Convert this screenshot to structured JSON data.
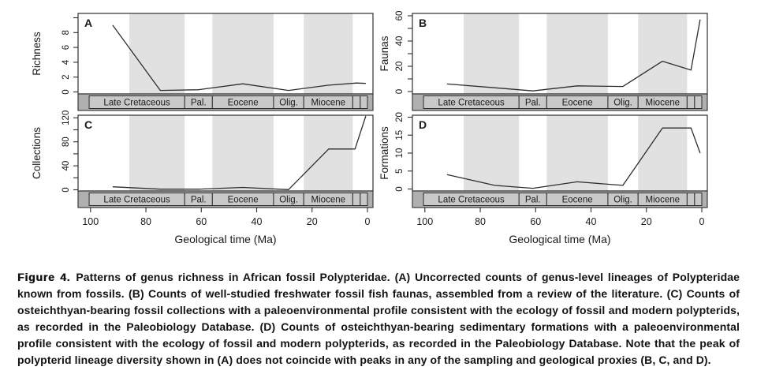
{
  "figure": {
    "caption": {
      "label": "Figure 4.",
      "text": "Patterns of genus richness in African fossil Polypteridae. (A) Uncorrected counts of genus-level lineages of Polypteridae known from fossils. (B) Counts of well-studied freshwater fossil fish faunas, assembled from a review of the literature. (C) Counts of osteichthyan-bearing fossil collections with a paleoenvironmental profile consistent with the ecology of fossil and modern polypterids, as recorded in the Paleobiology Database. (D) Counts of osteichthyan-bearing sedimentary formations with a paleoenvironmental profile consistent with the ecology of fossil and modern polypterids, as recorded in the Paleobiology Database. Note that the peak of polypterid lineage diversity shown in (A) does not coincide with peaks in any of the sampling and geological proxies (B, C, and D)."
    }
  },
  "colors": {
    "page_bg": "#ffffff",
    "plot_bg": "#ffffff",
    "shading_band": "#e1e1e1",
    "epoch_strip": "#b0b0b0",
    "epoch_box": "#c9c9c9",
    "frame": "#2e2e2e",
    "series_line": "#2e2e2e",
    "text": "#1a1a1a"
  },
  "chart_data": {
    "type": "line",
    "title": "",
    "xlabel": "Geological time (Ma)",
    "x_ticks": [
      100,
      80,
      60,
      40,
      20,
      0
    ],
    "x_range_ma": [
      104.5,
      -2
    ],
    "x_axis_reversed": true,
    "grid": false,
    "legend": "none",
    "background_shading_ma": [
      [
        86,
        66
      ],
      [
        56,
        33.9
      ],
      [
        23,
        5.3
      ]
    ],
    "epoch_boxes": [
      {
        "label": "Late Cretaceous",
        "from_ma": 100.5,
        "to_ma": 66
      },
      {
        "label": "Pal.",
        "from_ma": 66,
        "to_ma": 56
      },
      {
        "label": "Eocene",
        "from_ma": 56,
        "to_ma": 33.9
      },
      {
        "label": "Olig.",
        "from_ma": 33.9,
        "to_ma": 23
      },
      {
        "label": "Miocene",
        "from_ma": 23,
        "to_ma": 5.3
      },
      {
        "label": "",
        "from_ma": 5.3,
        "to_ma": 2.6
      },
      {
        "label": "",
        "from_ma": 2.6,
        "to_ma": 0
      }
    ],
    "panels": [
      {
        "id": "A",
        "ylabel": "Richness",
        "y_tick_labels": [
          0,
          2,
          4,
          6,
          8
        ],
        "y_tick_marks": [
          0,
          2,
          4,
          6,
          8,
          10
        ],
        "x_ma": [
          92,
          74.8,
          61,
          45,
          28.5,
          14.2,
          3.9,
          0.6
        ],
        "values": [
          9,
          0.2,
          0.3,
          1.1,
          0.2,
          0.9,
          1.2,
          1.15
        ]
      },
      {
        "id": "B",
        "ylabel": "Faunas",
        "y_tick_labels": [
          0,
          20,
          40,
          60
        ],
        "y_tick_marks": [
          0,
          10,
          20,
          30,
          40,
          50,
          60
        ],
        "x_ma": [
          92,
          74.8,
          61,
          45,
          28.5,
          14.2,
          3.9,
          0.6
        ],
        "values": [
          6,
          3,
          0.5,
          4.5,
          4,
          24,
          17,
          57
        ]
      },
      {
        "id": "C",
        "ylabel": "Collections",
        "y_tick_labels": [
          0,
          40,
          80,
          120
        ],
        "y_tick_marks": [
          0,
          20,
          40,
          60,
          80,
          100,
          120
        ],
        "x_ma": [
          92,
          74.8,
          61,
          45,
          28.5,
          14,
          4.5,
          0.6
        ],
        "values": [
          5,
          1,
          1,
          4,
          0.3,
          68,
          68,
          123
        ]
      },
      {
        "id": "D",
        "ylabel": "Formations",
        "y_tick_labels": [
          0,
          5,
          10,
          15,
          20
        ],
        "y_tick_marks": [
          0,
          5,
          10,
          15,
          20
        ],
        "x_ma": [
          92,
          74.8,
          61,
          45,
          28.5,
          14.2,
          3.9,
          0.6
        ],
        "values": [
          4,
          1,
          0.2,
          2,
          1,
          17,
          17,
          10
        ]
      }
    ]
  }
}
